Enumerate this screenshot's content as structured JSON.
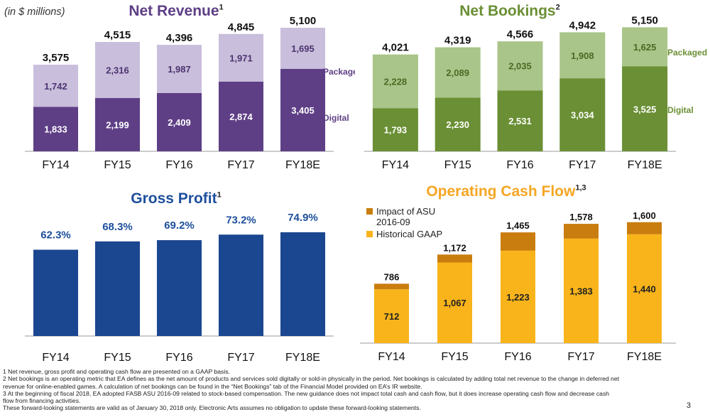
{
  "units_note": "(in $ millions)",
  "page_number": "3",
  "colors": {
    "revenue_digital": "#5e3f86",
    "revenue_packaged": "#c9bedb",
    "revenue_title": "#5e3f86",
    "bookings_digital": "#6a8f34",
    "bookings_packaged": "#a9c589",
    "bookings_title": "#6a8f34",
    "gross_bar": "#1b4690",
    "gross_title": "#1d4f9c",
    "ocf_gaap": "#f8b41a",
    "ocf_asu": "#c97d0e",
    "ocf_title": "#f5a623"
  },
  "chart_data": [
    {
      "id": "net_revenue",
      "type": "bar",
      "stacked": true,
      "title": "Net Revenue",
      "title_sup": "1",
      "categories": [
        "FY14",
        "FY15",
        "FY16",
        "FY17",
        "FY18E"
      ],
      "series": [
        {
          "name": "Digital",
          "values": [
            1833,
            2199,
            2409,
            2874,
            3405
          ]
        },
        {
          "name": "Packaged",
          "values": [
            1742,
            2316,
            1987,
            1971,
            1695
          ]
        }
      ],
      "totals": [
        3575,
        4515,
        4396,
        4845,
        5100
      ],
      "value_labels": [
        [
          "1,833",
          "2,199",
          "2,409",
          "2,874",
          "3,405"
        ],
        [
          "1,742",
          "2,316",
          "1,987",
          "1,971",
          "1,695"
        ]
      ],
      "total_labels": [
        "3,575",
        "4,515",
        "4,396",
        "4,845",
        "5,100"
      ],
      "legend": "right"
    },
    {
      "id": "net_bookings",
      "type": "bar",
      "stacked": true,
      "title": "Net Bookings",
      "title_sup": "2",
      "categories": [
        "FY14",
        "FY15",
        "FY16",
        "FY17",
        "FY18E"
      ],
      "series": [
        {
          "name": "Digital",
          "values": [
            1793,
            2230,
            2531,
            3034,
            3525
          ]
        },
        {
          "name": "Packaged",
          "values": [
            2228,
            2089,
            2035,
            1908,
            1625
          ]
        }
      ],
      "totals": [
        4021,
        4319,
        4566,
        4942,
        5150
      ],
      "value_labels": [
        [
          "1,793",
          "2,230",
          "2,531",
          "3,034",
          "3,525"
        ],
        [
          "2,228",
          "2,089",
          "2,035",
          "1,908",
          "1,625"
        ]
      ],
      "total_labels": [
        "4,021",
        "4,319",
        "4,566",
        "4,942",
        "5,150"
      ],
      "legend": "right"
    },
    {
      "id": "gross_profit",
      "type": "bar",
      "stacked": false,
      "title": "Gross Profit",
      "title_sup": "1",
      "categories": [
        "FY14",
        "FY15",
        "FY16",
        "FY17",
        "FY18E"
      ],
      "values": [
        62.3,
        68.3,
        69.2,
        73.2,
        74.9
      ],
      "value_labels": [
        "62.3%",
        "68.3%",
        "69.2%",
        "73.2%",
        "74.9%"
      ]
    },
    {
      "id": "operating_cash_flow",
      "type": "bar",
      "stacked": true,
      "title": "Operating Cash Flow",
      "title_sup": "1,3",
      "categories": [
        "FY14",
        "FY15",
        "FY16",
        "FY17",
        "FY18E"
      ],
      "series": [
        {
          "name": "Historical GAAP",
          "values": [
            712,
            1067,
            1223,
            1383,
            1440
          ]
        },
        {
          "name": "Impact of ASU 2016-09",
          "values": [
            74,
            105,
            242,
            195,
            160
          ]
        }
      ],
      "totals": [
        786,
        1172,
        1465,
        1578,
        1600
      ],
      "value_labels": [
        [
          "712",
          "1,067",
          "1,223",
          "1,383",
          "1,440"
        ],
        [
          "",
          "",
          "",
          "",
          ""
        ]
      ],
      "total_labels": [
        "786",
        "1,172",
        "1,465",
        "1,578",
        "1,600"
      ],
      "legend": "top-left",
      "legend_lines": {
        "asu": [
          "Impact of ASU",
          "2016-09"
        ],
        "gaap": [
          "Historical GAAP"
        ]
      }
    }
  ],
  "footnotes": [
    "1  Net revenue, gross profit and operating cash flow are presented on a GAAP basis.",
    "2  Net bookings is an operating metric that EA defines as the net amount of products and services sold digitally or sold-in physically in the period. Net bookings is calculated by adding total net revenue to the change in deferred net",
    "revenue for online-enabled games. A calculation of net bookings can be found in the “Net Bookings” tab of the Financial Model provided on EA’s IR website.",
    "3  At the beginning of fiscal 2018, EA adopted FASB ASU 2016-09 related to stock-based compensation. The new guidance does not impact total cash and cash flow, but it does increase operating cash flow and decrease cash",
    "flow from financing activities.",
    "These forward-looking statements are valid as of January 30, 2018 only. Electronic Arts assumes no obligation to update these forward-looking statements."
  ]
}
